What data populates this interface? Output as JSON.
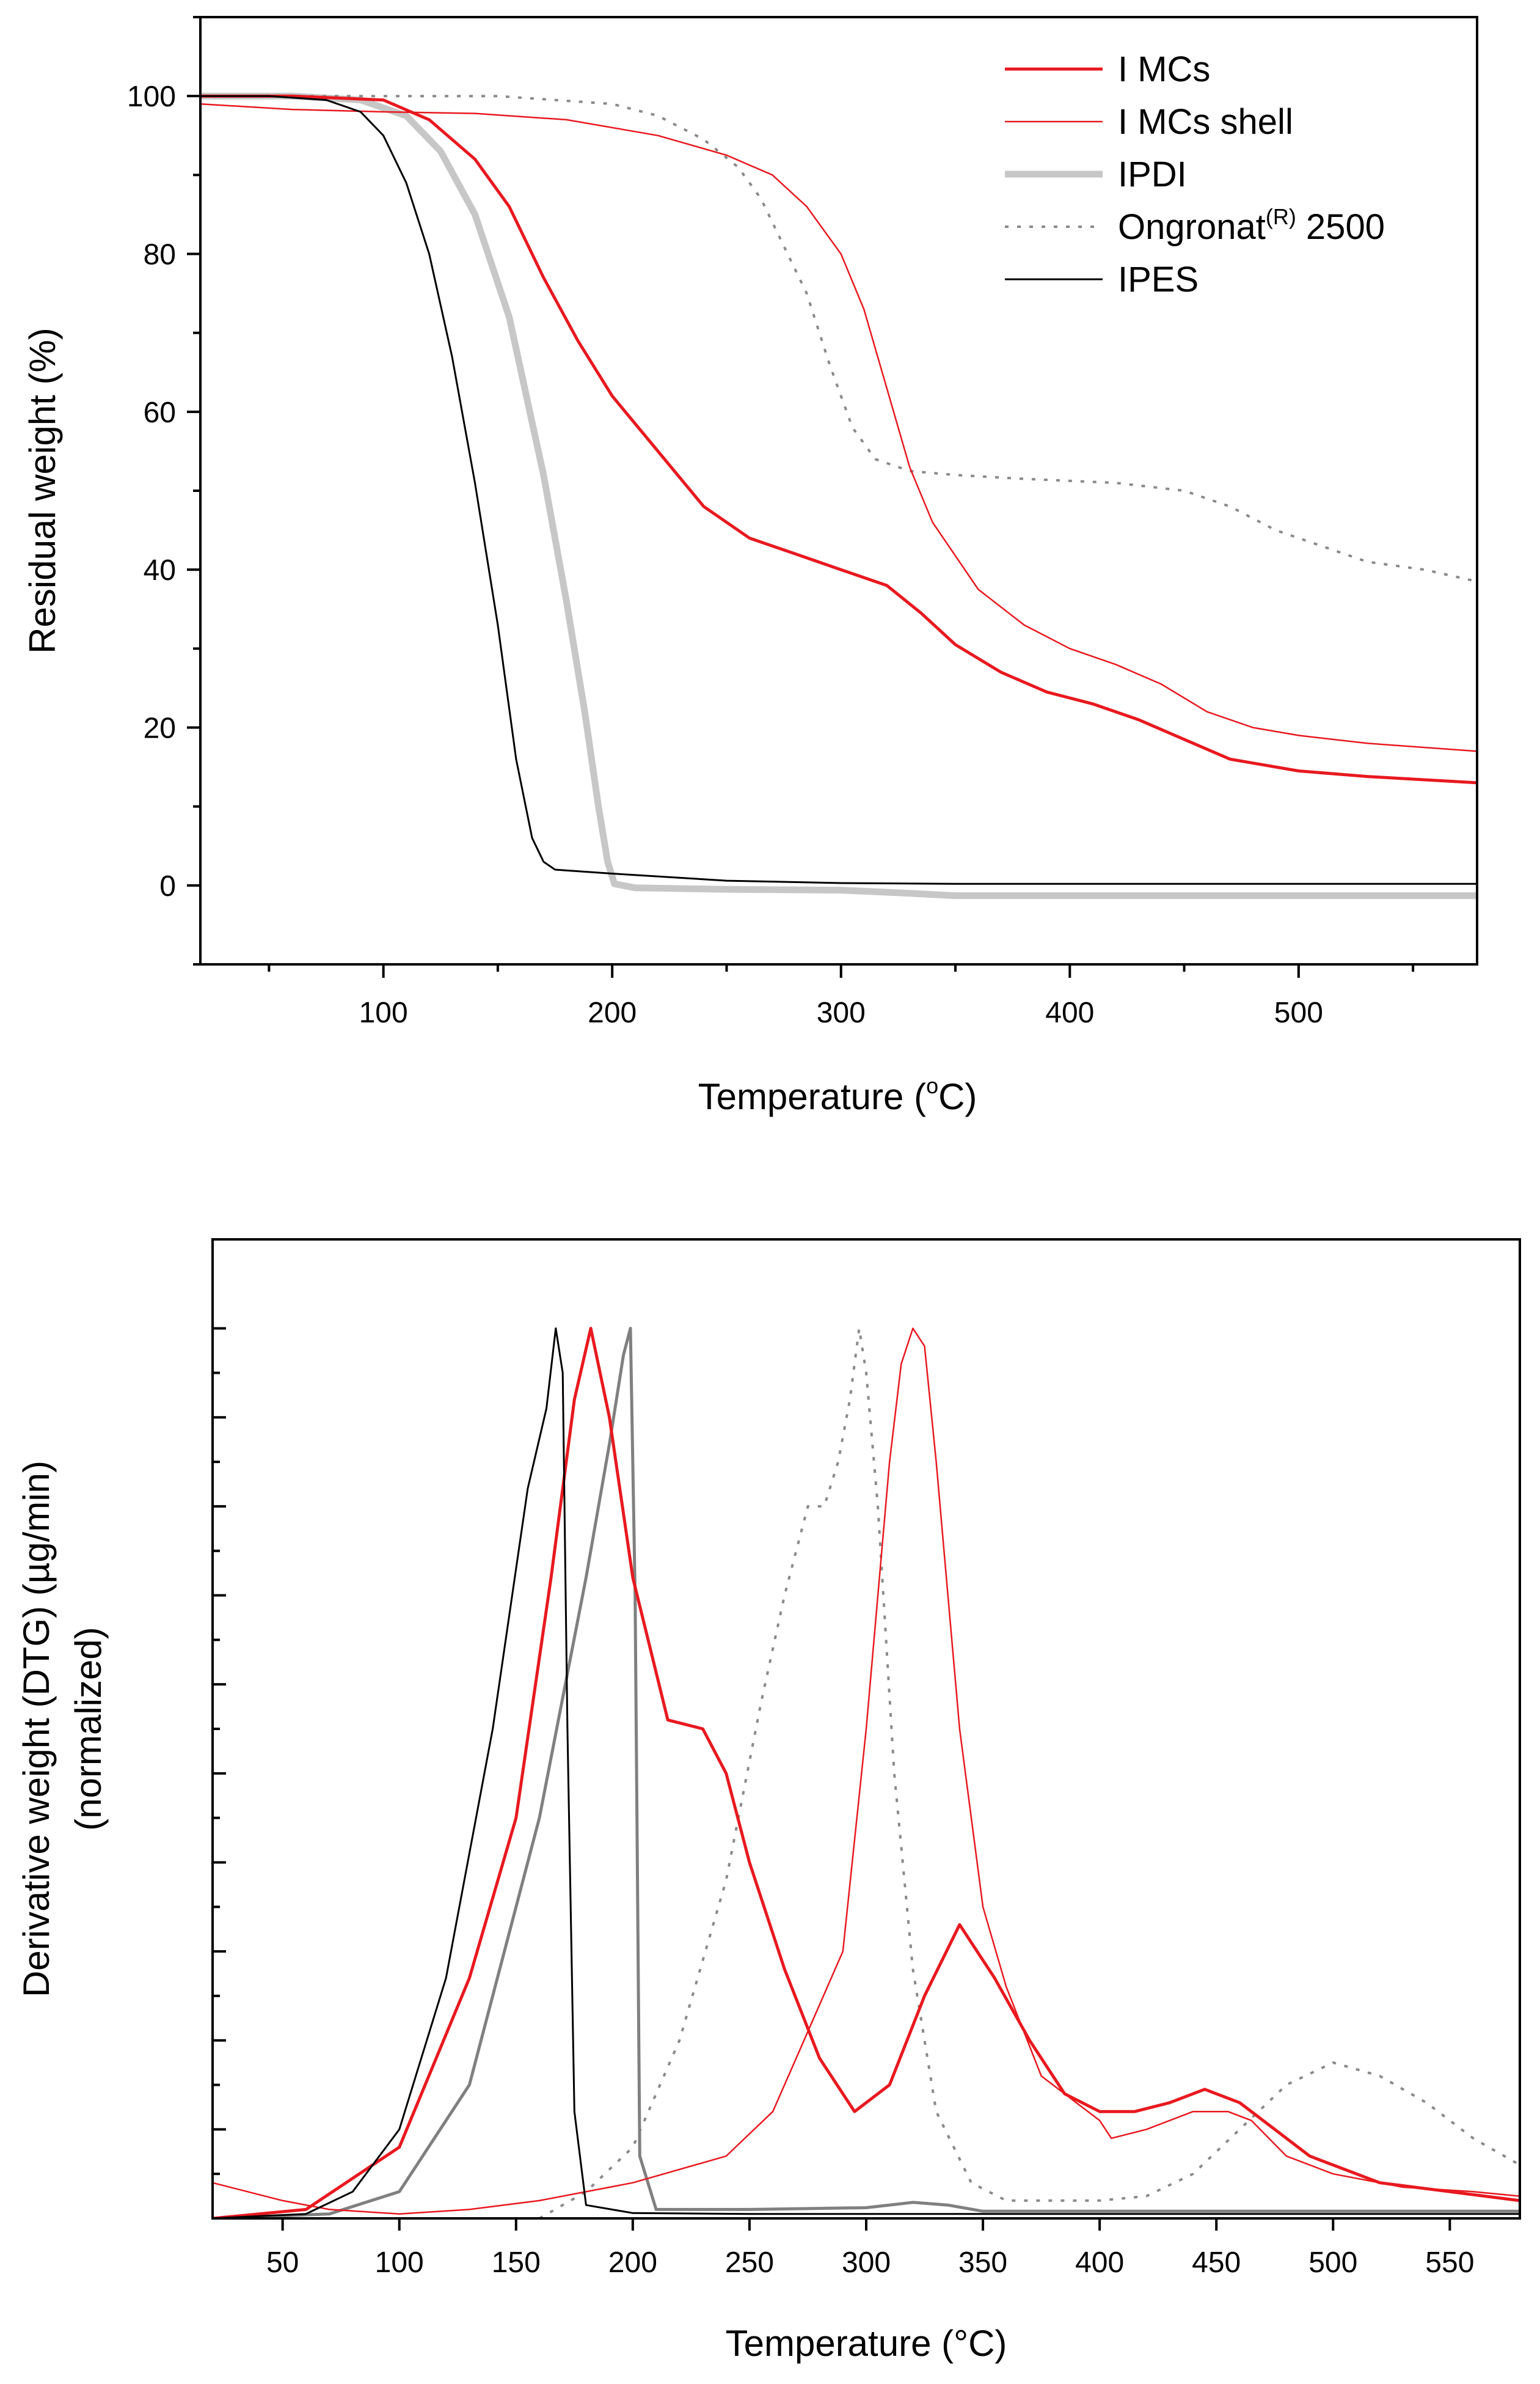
{
  "chart_data": [
    {
      "type": "line",
      "title": "",
      "xlabel": "Temperature (",
      "xlabel_sup": "o",
      "xlabel_end": "C)",
      "ylabel": "Residual weight (%)",
      "xlim": [
        20,
        578
      ],
      "ylim": [
        -10,
        110
      ],
      "xticks": [
        "100",
        "200",
        "300",
        "400",
        "500"
      ],
      "yticks": [
        "0",
        "20",
        "40",
        "60",
        "80",
        "100"
      ],
      "legend": {
        "position": "top-right",
        "entries": [
          {
            "label": "I MCs",
            "sup": "",
            "suffix": ""
          },
          {
            "label": "I MCs shell",
            "sup": "",
            "suffix": ""
          },
          {
            "label": "IPDI",
            "sup": "",
            "suffix": ""
          },
          {
            "label": "Ongronat",
            "sup": "(R)",
            "suffix": " 2500"
          },
          {
            "label": "IPES",
            "sup": "",
            "suffix": ""
          }
        ]
      },
      "series": [
        {
          "name": "I MCs",
          "color": "#e8191f",
          "width": 5,
          "dash": "",
          "x": [
            20,
            60,
            100,
            120,
            140,
            155,
            170,
            185,
            200,
            220,
            240,
            260,
            280,
            300,
            320,
            335,
            350,
            370,
            390,
            410,
            430,
            450,
            470,
            500,
            530,
            578
          ],
          "y": [
            100,
            100,
            99.5,
            97,
            92,
            86,
            77,
            69,
            62,
            55,
            48,
            44,
            42,
            40,
            38,
            34.5,
            30.5,
            27,
            24.5,
            23,
            21,
            18.5,
            16,
            14.5,
            13.8,
            13
          ]
        },
        {
          "name": "I MCs shell",
          "color": "#e8191f",
          "width": 2.5,
          "dash": "",
          "x": [
            20,
            60,
            100,
            140,
            180,
            220,
            250,
            270,
            285,
            300,
            310,
            320,
            330,
            340,
            360,
            380,
            400,
            420,
            440,
            460,
            480,
            500,
            530,
            578
          ],
          "y": [
            99,
            98.3,
            98,
            97.8,
            97,
            95,
            92.5,
            90,
            86,
            80,
            73,
            63,
            53,
            46,
            37.5,
            33,
            30,
            28,
            25.5,
            22,
            20,
            19,
            18,
            17
          ]
        },
        {
          "name": "IPDI",
          "color": "#c7c7c7",
          "width": 11,
          "dash": "",
          "x": [
            20,
            60,
            90,
            110,
            125,
            140,
            155,
            170,
            180,
            188,
            194,
            198,
            201,
            210,
            250,
            300,
            330,
            350,
            400,
            578
          ],
          "y": [
            100,
            100,
            99.5,
            97.5,
            93,
            85,
            72,
            52,
            36,
            22,
            10,
            3,
            0.2,
            -0.3,
            -0.5,
            -0.6,
            -1,
            -1.3,
            -1.3,
            -1.3
          ]
        },
        {
          "name": "Ongronat(R) 2500",
          "color": "#8a8a8a",
          "width": 4,
          "dash": "6 14",
          "x": [
            20,
            80,
            150,
            200,
            220,
            240,
            255,
            265,
            275,
            285,
            295,
            305,
            315,
            330,
            350,
            380,
            420,
            450,
            470,
            490,
            510,
            530,
            555,
            578
          ],
          "y": [
            100,
            100,
            100,
            99,
            97.5,
            94.5,
            91,
            87,
            81,
            75,
            66,
            58,
            54,
            52.5,
            52,
            51.5,
            51,
            50,
            48,
            45,
            43,
            41,
            40,
            38.5
          ]
        },
        {
          "name": "IPES",
          "color": "#000000",
          "width": 3,
          "dash": "",
          "x": [
            20,
            50,
            75,
            90,
            100,
            110,
            120,
            130,
            140,
            150,
            158,
            165,
            170,
            175,
            185,
            200,
            250,
            300,
            350,
            400,
            578
          ],
          "y": [
            100,
            100,
            99.5,
            98,
            95,
            89,
            80,
            67,
            51,
            33,
            16,
            6,
            3,
            2,
            1.8,
            1.5,
            0.6,
            0.3,
            0.2,
            0.2,
            0.2
          ]
        }
      ]
    },
    {
      "type": "line",
      "title": "",
      "xlabel": "Temperature (°C)",
      "ylabel_line1": "Derivative weight (DTG) (µg/min)",
      "ylabel_line2": "(normalized)",
      "xlim": [
        20,
        580
      ],
      "ylim": [
        0,
        1.1
      ],
      "xticks": [
        "50",
        "100",
        "150",
        "200",
        "250",
        "300",
        "350",
        "400",
        "450",
        "500",
        "550"
      ],
      "legend": null,
      "series": [
        {
          "name": "IPES",
          "color": "#000000",
          "width": 3,
          "dash": "",
          "x": [
            20,
            60,
            80,
            100,
            120,
            140,
            155,
            163,
            167,
            170,
            172,
            175,
            180,
            200,
            250,
            580
          ],
          "y": [
            0,
            0.005,
            0.03,
            0.1,
            0.27,
            0.55,
            0.82,
            0.91,
            1.0,
            0.95,
            0.55,
            0.12,
            0.015,
            0.006,
            0.005,
            0.005
          ]
        },
        {
          "name": "IPDI",
          "color": "#808080",
          "width": 5,
          "dash": "",
          "x": [
            20,
            70,
            100,
            130,
            160,
            180,
            190,
            196,
            199,
            201,
            203,
            210,
            250,
            300,
            320,
            335,
            350,
            580
          ],
          "y": [
            0,
            0.005,
            0.03,
            0.15,
            0.45,
            0.72,
            0.87,
            0.97,
            1.0,
            0.7,
            0.07,
            0.01,
            0.01,
            0.012,
            0.018,
            0.015,
            0.008,
            0.008
          ]
        },
        {
          "name": "I MCs",
          "color": "#e8191f",
          "width": 5,
          "dash": "",
          "x": [
            20,
            60,
            100,
            130,
            150,
            165,
            175,
            182,
            190,
            200,
            215,
            230,
            240,
            250,
            265,
            280,
            295,
            310,
            325,
            340,
            355,
            370,
            385,
            400,
            415,
            430,
            445,
            460,
            475,
            490,
            520,
            550,
            580
          ],
          "y": [
            0,
            0.01,
            0.08,
            0.27,
            0.45,
            0.72,
            0.92,
            1.0,
            0.9,
            0.72,
            0.56,
            0.55,
            0.5,
            0.4,
            0.28,
            0.18,
            0.12,
            0.15,
            0.25,
            0.33,
            0.27,
            0.2,
            0.14,
            0.12,
            0.12,
            0.13,
            0.145,
            0.13,
            0.1,
            0.07,
            0.04,
            0.03,
            0.02
          ]
        },
        {
          "name": "I MCs shell",
          "color": "#e8191f",
          "width": 2.5,
          "dash": "",
          "x": [
            20,
            35,
            50,
            70,
            100,
            130,
            160,
            200,
            240,
            260,
            270,
            280,
            290,
            300,
            310,
            315,
            320,
            325,
            330,
            340,
            350,
            360,
            375,
            390,
            400,
            405,
            420,
            440,
            455,
            465,
            480,
            500,
            530,
            560,
            580
          ],
          "y": [
            0.04,
            0.03,
            0.02,
            0.01,
            0.005,
            0.01,
            0.02,
            0.04,
            0.07,
            0.12,
            0.18,
            0.24,
            0.3,
            0.55,
            0.85,
            0.96,
            1.0,
            0.98,
            0.85,
            0.55,
            0.35,
            0.26,
            0.16,
            0.13,
            0.11,
            0.09,
            0.1,
            0.12,
            0.12,
            0.11,
            0.07,
            0.05,
            0.035,
            0.03,
            0.025
          ]
        },
        {
          "name": "Ongronat(R) 2500",
          "color": "#8a8a8a",
          "width": 4,
          "dash": "6 14",
          "x": [
            160,
            180,
            200,
            220,
            240,
            255,
            265,
            275,
            282,
            288,
            293,
            297,
            300,
            305,
            312,
            320,
            330,
            345,
            360,
            380,
            400,
            420,
            440,
            460,
            480,
            500,
            520,
            540,
            560,
            580
          ],
          "y": [
            0,
            0.03,
            0.08,
            0.2,
            0.38,
            0.58,
            0.7,
            0.8,
            0.8,
            0.85,
            0.92,
            1.0,
            0.95,
            0.8,
            0.5,
            0.28,
            0.12,
            0.04,
            0.02,
            0.02,
            0.02,
            0.025,
            0.05,
            0.1,
            0.15,
            0.175,
            0.16,
            0.13,
            0.09,
            0.06
          ]
        }
      ]
    }
  ]
}
